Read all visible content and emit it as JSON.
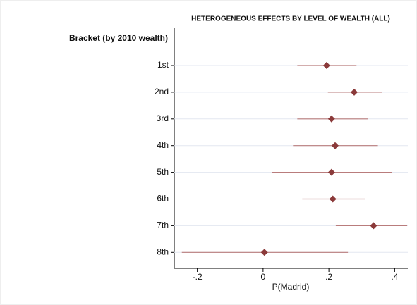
{
  "chart_data": {
    "type": "errorbar",
    "title": "HETEROGENEOUS EFFECTS BY LEVEL OF WEALTH (ALL)",
    "y_label": "Bracket (by 2010 wealth)",
    "x_label": "P(Madrid)",
    "categories": [
      "1st",
      "2nd",
      "3rd",
      "4th",
      "5th",
      "6th",
      "7th",
      "8th"
    ],
    "values": [
      0.193,
      0.277,
      0.208,
      0.219,
      0.208,
      0.212,
      0.336,
      0.004
    ],
    "lower": [
      0.104,
      0.197,
      0.104,
      0.091,
      0.026,
      0.119,
      0.221,
      -0.247
    ],
    "upper": [
      0.284,
      0.362,
      0.319,
      0.349,
      0.392,
      0.31,
      0.438,
      0.258
    ],
    "color": "#8b3a3a",
    "bar_color": "#b97c7c",
    "xlim": [
      -0.27,
      0.44
    ],
    "xticks": [
      {
        "value": -0.2,
        "label": "-.2"
      },
      0,
      {
        "value": 0.2,
        "label": ".2"
      },
      {
        "value": 0.4,
        "label": ".4"
      }
    ],
    "grid": true
  }
}
